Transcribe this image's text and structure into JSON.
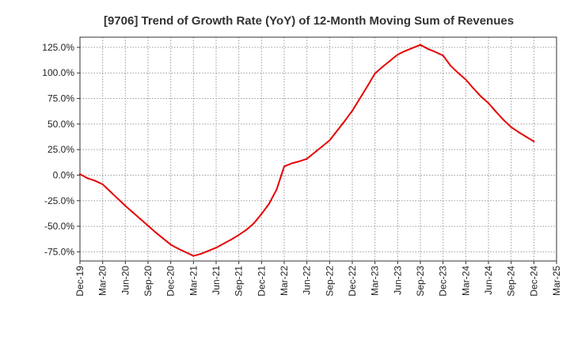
{
  "chart_data": {
    "type": "line",
    "title": "[9706]  Trend of Growth Rate (YoY) of 12-Month Moving Sum of Revenues",
    "xlabel": "",
    "ylabel": "",
    "y_unit": "%",
    "ylim": [
      -84,
      135
    ],
    "y_ticks": [
      125,
      100,
      75,
      50,
      25,
      0,
      -25,
      -50,
      -75
    ],
    "y_tick_labels": [
      "125.0%",
      "100.0%",
      "75.0%",
      "50.0%",
      "25.0%",
      "0.0%",
      "-25.0%",
      "-50.0%",
      "-75.0%"
    ],
    "x_tick_labels": [
      "Dec-19",
      "Mar-20",
      "Jun-20",
      "Sep-20",
      "Dec-20",
      "Mar-21",
      "Jun-21",
      "Sep-21",
      "Dec-21",
      "Mar-22",
      "Jun-22",
      "Sep-22",
      "Dec-22",
      "Mar-23",
      "Jun-23",
      "Sep-23",
      "Dec-23",
      "Mar-24",
      "Jun-24",
      "Sep-24",
      "Dec-24",
      "Mar-25"
    ],
    "grid": true,
    "series": [
      {
        "color": "#e60000",
        "x": [
          "Dec-19",
          "Jan-20",
          "Feb-20",
          "Mar-20",
          "Apr-20",
          "May-20",
          "Jun-20",
          "Jul-20",
          "Aug-20",
          "Sep-20",
          "Oct-20",
          "Nov-20",
          "Dec-20",
          "Jan-21",
          "Feb-21",
          "Mar-21",
          "Apr-21",
          "May-21",
          "Jun-21",
          "Jul-21",
          "Aug-21",
          "Sep-21",
          "Oct-21",
          "Nov-21",
          "Dec-21",
          "Jan-22",
          "Feb-22",
          "Mar-22",
          "Apr-22",
          "May-22",
          "Jun-22",
          "Jul-22",
          "Aug-22",
          "Sep-22",
          "Oct-22",
          "Nov-22",
          "Dec-22",
          "Jan-23",
          "Feb-23",
          "Mar-23",
          "Apr-23",
          "May-23",
          "Jun-23",
          "Jul-23",
          "Aug-23",
          "Sep-23",
          "Oct-23",
          "Nov-23",
          "Dec-23",
          "Jan-24",
          "Feb-24",
          "Mar-24",
          "Apr-24",
          "May-24",
          "Jun-24",
          "Jul-24",
          "Aug-24",
          "Sep-24",
          "Oct-24",
          "Nov-24",
          "Dec-24"
        ],
        "values": [
          1.0,
          -3.0,
          -5.5,
          -9.0,
          -16.0,
          -23.0,
          -30.0,
          -36.5,
          -43.0,
          -49.5,
          -56.0,
          -62.0,
          -68.0,
          -72.0,
          -75.5,
          -79.0,
          -77.0,
          -74.0,
          -71.0,
          -67.0,
          -63.0,
          -58.5,
          -53.5,
          -47.0,
          -38.0,
          -28.0,
          -14.0,
          8.5,
          11.5,
          13.5,
          16.0,
          22.0,
          28.0,
          34.0,
          43.5,
          53.0,
          63.0,
          75.0,
          87.0,
          99.5,
          106.0,
          112.0,
          118.0,
          121.5,
          124.5,
          127.5,
          123.5,
          120.5,
          117.0,
          107.0,
          100.0,
          93.5,
          85.0,
          77.0,
          70.5,
          62.0,
          54.0,
          47.0,
          42.0,
          37.5,
          33.0
        ]
      }
    ]
  }
}
